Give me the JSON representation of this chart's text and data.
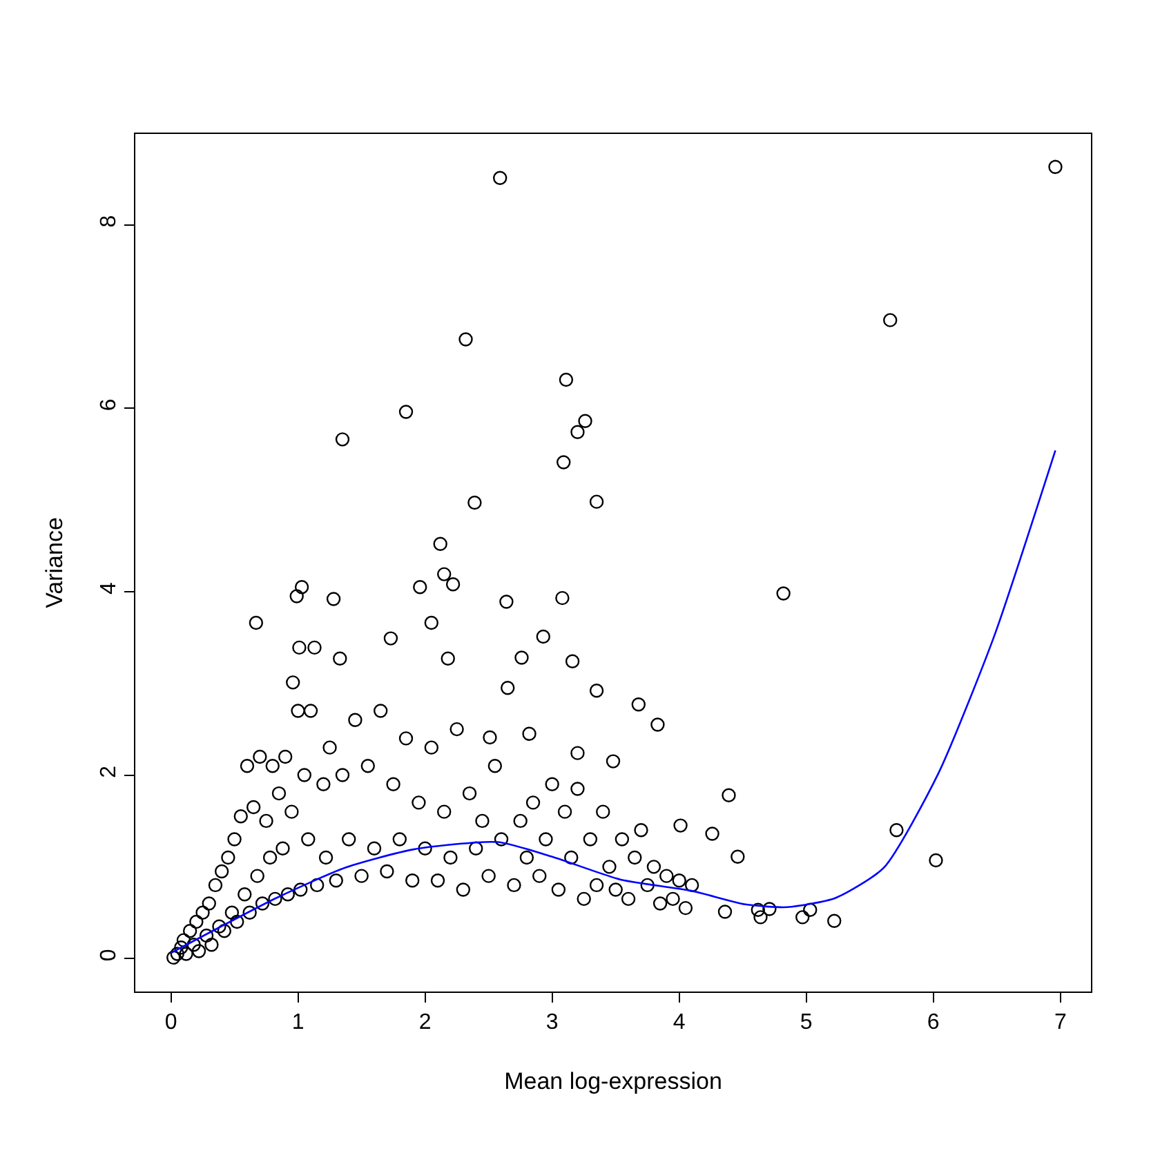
{
  "chart_data": {
    "type": "scatter",
    "xlabel": "Mean log-expression",
    "ylabel": "Variance",
    "xlim": [
      -0.28,
      7.24
    ],
    "ylim": [
      -0.36,
      8.99
    ],
    "xticks": [
      0,
      1,
      2,
      3,
      4,
      5,
      6,
      7
    ],
    "yticks": [
      0,
      2,
      4,
      6,
      8
    ],
    "marker": "circle",
    "series": [
      {
        "color": "#000000",
        "x": [
          2.59,
          6.96,
          2.32,
          5.66,
          1.85,
          3.11,
          3.26,
          3.2,
          1.35,
          3.09,
          2.39,
          3.35,
          2.12,
          4.82,
          1.03,
          0.99,
          1.28,
          2.64,
          3.08,
          2.15,
          1.96,
          2.22,
          0.67,
          1.01,
          1.33,
          1.73,
          2.05,
          2.18,
          2.76,
          2.93,
          3.16,
          3.35,
          3.68,
          3.83,
          0.96,
          1.13,
          4.39,
          4.26,
          4.01,
          4.46,
          5.71,
          6.02,
          5.22,
          4.97,
          5.03,
          4.62,
          4.71,
          4.36,
          4.64,
          3.2,
          3.48,
          2.82,
          2.51,
          0.02,
          0.05,
          0.08,
          0.1,
          0.12,
          0.15,
          0.18,
          0.2,
          0.22,
          0.25,
          0.28,
          0.3,
          0.32,
          0.35,
          0.38,
          0.4,
          0.42,
          0.45,
          0.48,
          0.5,
          0.52,
          0.55,
          0.58,
          0.6,
          0.62,
          0.65,
          0.68,
          0.7,
          0.72,
          0.75,
          0.78,
          0.8,
          0.82,
          0.85,
          0.88,
          0.9,
          0.92,
          0.95,
          1.0,
          1.02,
          1.05,
          1.08,
          1.1,
          1.15,
          1.2,
          1.22,
          1.25,
          1.3,
          1.35,
          1.4,
          1.45,
          1.5,
          1.55,
          1.6,
          1.65,
          1.7,
          1.75,
          1.8,
          1.85,
          1.9,
          1.95,
          2.0,
          2.05,
          2.1,
          2.15,
          2.2,
          2.25,
          2.3,
          2.35,
          2.4,
          2.45,
          2.5,
          2.55,
          2.6,
          2.65,
          2.7,
          2.75,
          2.8,
          2.85,
          2.9,
          2.95,
          3.0,
          3.05,
          3.1,
          3.15,
          3.2,
          3.25,
          3.3,
          3.35,
          3.4,
          3.45,
          3.5,
          3.55,
          3.6,
          3.65,
          3.7,
          3.75,
          3.8,
          3.85,
          3.9,
          3.95,
          4.0,
          4.05,
          4.1
        ],
        "values": [
          8.51,
          8.63,
          6.75,
          6.96,
          5.96,
          6.31,
          5.86,
          5.74,
          5.66,
          5.41,
          4.97,
          4.98,
          4.52,
          3.98,
          4.05,
          3.95,
          3.92,
          3.89,
          3.93,
          4.19,
          4.05,
          4.08,
          3.66,
          3.39,
          3.27,
          3.49,
          3.66,
          3.27,
          3.28,
          3.51,
          3.24,
          2.92,
          2.77,
          2.55,
          3.01,
          3.39,
          1.78,
          1.36,
          1.45,
          1.11,
          1.4,
          1.07,
          0.41,
          0.45,
          0.53,
          0.53,
          0.54,
          0.51,
          0.45,
          2.24,
          2.15,
          2.45,
          2.41,
          0.01,
          0.05,
          0.12,
          0.2,
          0.05,
          0.3,
          0.15,
          0.4,
          0.08,
          0.5,
          0.25,
          0.6,
          0.15,
          0.8,
          0.35,
          0.95,
          0.3,
          1.1,
          0.5,
          1.3,
          0.4,
          1.55,
          0.7,
          2.1,
          0.5,
          1.65,
          0.9,
          2.2,
          0.6,
          1.5,
          1.1,
          2.1,
          0.65,
          1.8,
          1.2,
          2.2,
          0.7,
          1.6,
          2.7,
          0.75,
          2.0,
          1.3,
          2.7,
          0.8,
          1.9,
          1.1,
          2.3,
          0.85,
          2.0,
          1.3,
          2.6,
          0.9,
          2.1,
          1.2,
          2.7,
          0.95,
          1.9,
          1.3,
          2.4,
          0.85,
          1.7,
          1.2,
          2.3,
          0.85,
          1.6,
          1.1,
          2.5,
          0.75,
          1.8,
          1.2,
          1.5,
          0.9,
          2.1,
          1.3,
          2.95,
          0.8,
          1.5,
          1.1,
          1.7,
          0.9,
          1.3,
          1.9,
          0.75,
          1.6,
          1.1,
          1.85,
          0.65,
          1.3,
          0.8,
          1.6,
          1.0,
          0.75,
          1.3,
          0.65,
          1.1,
          1.4,
          0.8,
          1.0,
          0.6,
          0.9,
          0.65,
          0.85,
          0.55,
          0.8
        ]
      },
      {
        "type": "line",
        "color": "#0000ff",
        "line_style": "solid",
        "marker": "none",
        "x": [
          0.0,
          0.83,
          1.37,
          1.91,
          2.57,
          3.0,
          3.54,
          4.09,
          4.52,
          4.85,
          5.23,
          5.61,
          6.04,
          6.48,
          6.96
        ],
        "values": [
          0.06,
          0.66,
          0.99,
          1.19,
          1.27,
          1.11,
          0.86,
          0.74,
          0.59,
          0.56,
          0.66,
          0.99,
          2.02,
          3.52,
          5.54
        ]
      }
    ]
  }
}
